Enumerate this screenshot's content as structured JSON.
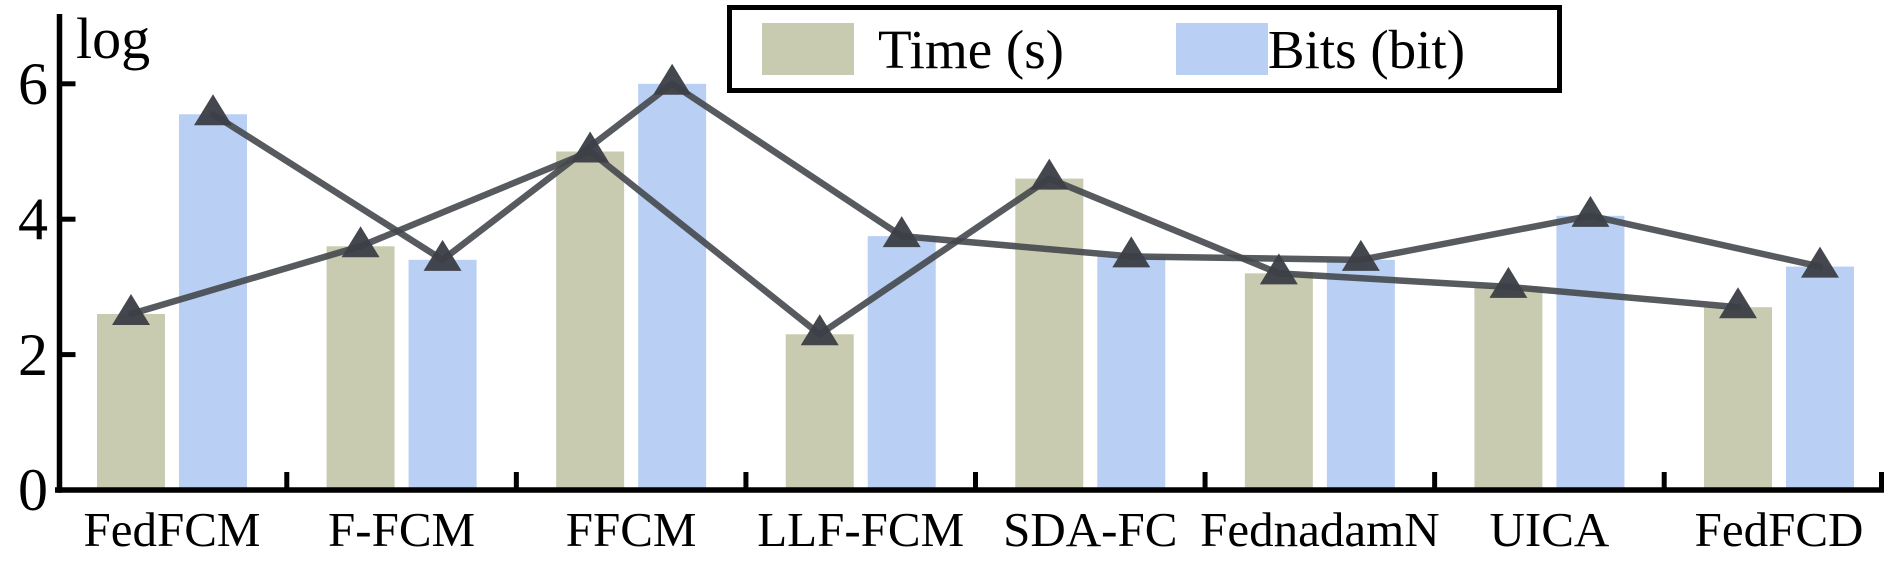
{
  "chart_data": {
    "type": "bar",
    "title": "",
    "ylabel": "log",
    "xlabel": "",
    "categories": [
      "FedFCM",
      "F-FCM",
      "FFCM",
      "LLF-FCM",
      "SDA-FC",
      "FednadamN",
      "UICA",
      "FedFCD"
    ],
    "series": [
      {
        "name": "Time (s)",
        "color": "#c9cbb0",
        "values": [
          2.6,
          3.6,
          5.0,
          2.3,
          4.6,
          3.2,
          3.0,
          2.7
        ]
      },
      {
        "name": "Bits (bit)",
        "color": "#b9cff3",
        "values": [
          5.55,
          3.4,
          6.0,
          3.75,
          3.45,
          3.4,
          4.05,
          3.3
        ]
      }
    ],
    "overlay_lines": {
      "present": true,
      "marker": "triangle",
      "line_color": "#45484c",
      "marker_color": "#3c4046"
    },
    "y_ticks": [
      0,
      2,
      4,
      6
    ],
    "ylim": [
      0,
      6.2
    ],
    "grid": false,
    "legend_position": "top-center",
    "axis_color": "#000000"
  }
}
